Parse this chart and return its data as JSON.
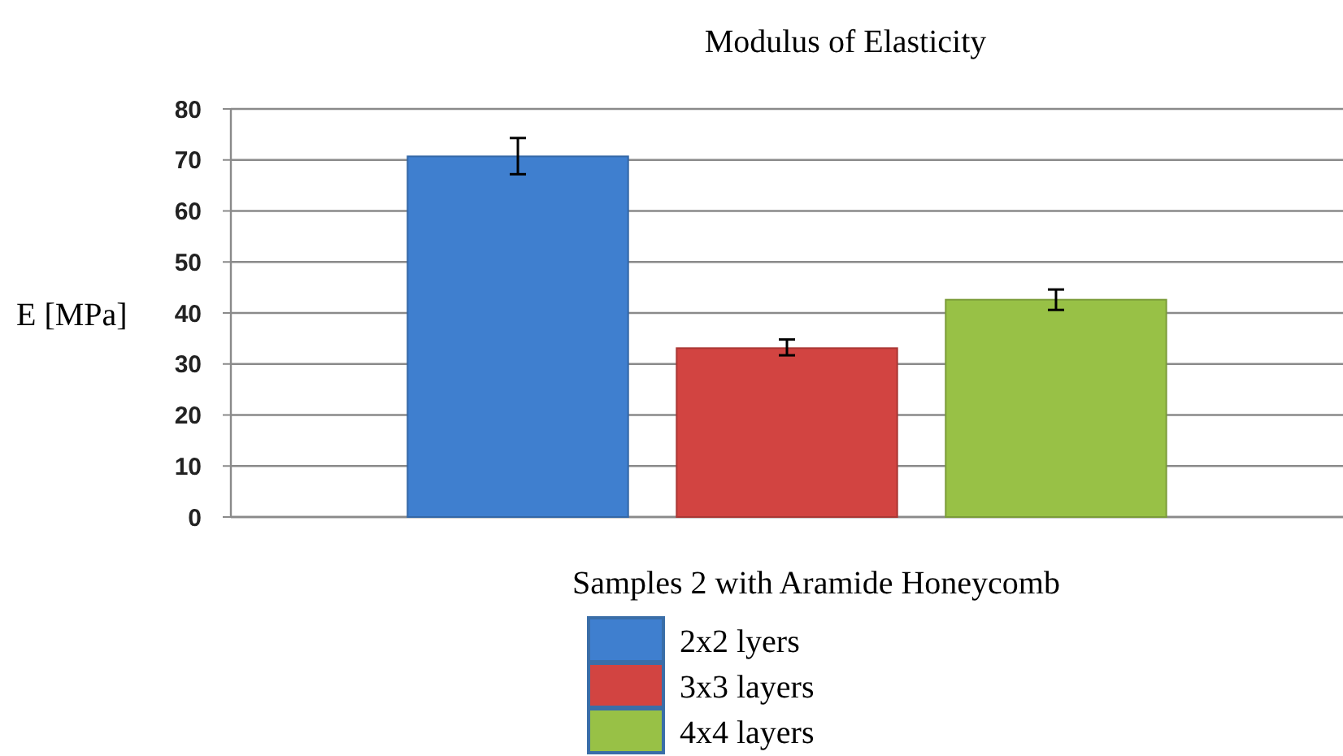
{
  "chart_data": {
    "type": "bar",
    "title": "Modulus of Elasticity",
    "ylabel": "E [MPa]",
    "legend_title": "Samples 2 with Aramide Honeycomb",
    "categories": [
      null
    ],
    "series": [
      {
        "name": "2x2 lyers",
        "color": "#3f7fcf",
        "values": [
          70.7
        ],
        "errors": [
          [
            67.2,
            74.3
          ]
        ]
      },
      {
        "name": "3x3 layers",
        "color": "#d24441",
        "values": [
          33.1
        ],
        "errors": [
          [
            31.7,
            34.8
          ]
        ]
      },
      {
        "name": "4x4 layers",
        "color": "#98c146",
        "values": [
          42.6
        ],
        "errors": [
          [
            40.6,
            44.6
          ]
        ]
      }
    ],
    "ylim": [
      0,
      80
    ],
    "yticks": [
      0,
      10,
      20,
      30,
      40,
      50,
      60,
      70,
      80
    ],
    "grid": "y",
    "legend": "bottom"
  }
}
